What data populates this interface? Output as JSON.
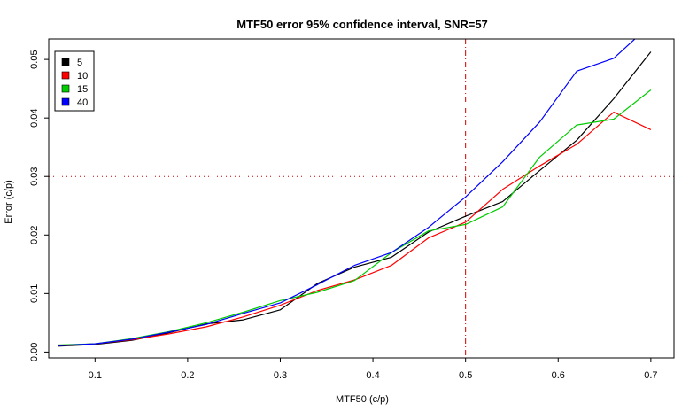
{
  "chart_data": {
    "type": "line",
    "title": "MTF50 error 95% confidence interval, SNR=57",
    "xlabel": "MTF50 (c/p)",
    "ylabel": "Error (c/p)",
    "xlim": [
      0.05,
      0.725
    ],
    "ylim": [
      -0.001,
      0.0535
    ],
    "x_ticks": [
      "0.1",
      "0.2",
      "0.3",
      "0.4",
      "0.5",
      "0.6",
      "0.7"
    ],
    "y_ticks": [
      "0.00",
      "0.01",
      "0.02",
      "0.03",
      "0.04",
      "0.05"
    ],
    "x_tick_values": [
      0.1,
      0.2,
      0.3,
      0.4,
      0.5,
      0.6,
      0.7
    ],
    "y_tick_values": [
      0.0,
      0.01,
      0.02,
      0.03,
      0.04,
      0.05
    ],
    "reference_lines": {
      "vertical_x": 0.5,
      "horizontal_y": 0.03,
      "color": "#cc0000"
    },
    "legend_position": "top-left",
    "x": [
      0.06,
      0.1,
      0.14,
      0.18,
      0.22,
      0.26,
      0.3,
      0.34,
      0.38,
      0.42,
      0.46,
      0.5,
      0.54,
      0.58,
      0.62,
      0.66,
      0.7
    ],
    "series": [
      {
        "name": "5",
        "color": "#000000",
        "values": [
          0.001,
          0.0013,
          0.002,
          0.0033,
          0.0048,
          0.0055,
          0.0072,
          0.0117,
          0.0145,
          0.0162,
          0.0205,
          0.0232,
          0.0257,
          0.031,
          0.0362,
          0.0433,
          0.0513
        ]
      },
      {
        "name": "10",
        "color": "#ff0000",
        "values": [
          0.0011,
          0.0014,
          0.0021,
          0.0031,
          0.0043,
          0.006,
          0.008,
          0.0105,
          0.0123,
          0.0148,
          0.0195,
          0.0222,
          0.0278,
          0.0318,
          0.0355,
          0.041,
          0.038
        ]
      },
      {
        "name": "15",
        "color": "#00cc00",
        "values": [
          0.0012,
          0.0014,
          0.0023,
          0.0035,
          0.005,
          0.0068,
          0.0088,
          0.0102,
          0.0122,
          0.017,
          0.0207,
          0.0218,
          0.0248,
          0.0333,
          0.0388,
          0.0398,
          0.0448
        ]
      },
      {
        "name": "40",
        "color": "#0000ff",
        "values": [
          0.0011,
          0.0014,
          0.0022,
          0.0034,
          0.0047,
          0.0066,
          0.0084,
          0.0115,
          0.0148,
          0.017,
          0.0213,
          0.0265,
          0.0325,
          0.0393,
          0.048,
          0.0502,
          0.056
        ]
      }
    ]
  }
}
